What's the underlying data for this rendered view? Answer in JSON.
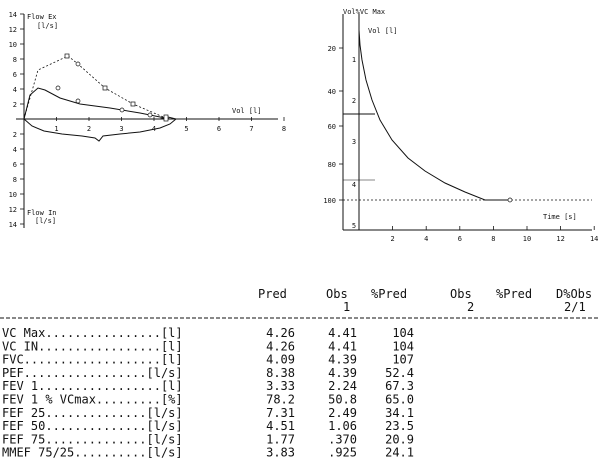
{
  "flow_chart": {
    "y_axis_title_top": "Flow Ex",
    "y_axis_unit_top": "[l/s]",
    "y_axis_title_bottom": "Flow In",
    "y_axis_unit_bottom": "[l/s]",
    "x_axis_title": "Vol [l]",
    "y_ticks_top": [
      "14",
      "12",
      "10",
      "8",
      "6",
      "4",
      "2"
    ],
    "y_ticks_bottom": [
      "2",
      "4",
      "6",
      "8",
      "10",
      "12",
      "14"
    ],
    "x_ticks": [
      "1",
      "2",
      "3",
      "4",
      "5",
      "6",
      "7",
      "8"
    ]
  },
  "volume_time_chart": {
    "y_axis_title": "Vol%VC Max",
    "inner_label": "Vol [l]",
    "x_axis_title": "Time [s]",
    "pct_ticks": [
      "20",
      "40",
      "60",
      "80",
      "100"
    ],
    "vol_ticks": [
      "1",
      "2",
      "3",
      "4",
      "5"
    ],
    "x_ticks": [
      "2",
      "4",
      "6",
      "8",
      "10",
      "12",
      "14"
    ]
  },
  "table": {
    "headers": {
      "pred": "Pred",
      "obs1": "Obs",
      "obs1_sub": "1",
      "pred_pct1": "%Pred",
      "obs2": "Obs",
      "obs2_sub": "2",
      "pred_pct2": "%Pred",
      "dobs": "D%Obs",
      "dobs_sub": "2/1"
    },
    "rows": [
      {
        "label": "VC Max................[l]",
        "pred": "4.26",
        "obs": "4.41",
        "pct": "104"
      },
      {
        "label": "VC IN.................[l]",
        "pred": "4.26",
        "obs": "4.41",
        "pct": "104"
      },
      {
        "label": "FVC...................[l]",
        "pred": "4.09",
        "obs": "4.39",
        "pct": "107"
      },
      {
        "label": "PEF.................[l/s]",
        "pred": "8.38",
        "obs": "4.39",
        "pct": "52.4"
      },
      {
        "label": "FEV 1.................[l]",
        "pred": "3.33",
        "obs": "2.24",
        "pct": "67.3"
      },
      {
        "label": "FEV 1 % VCmax.........[%]",
        "pred": "78.2",
        "obs": "50.8",
        "pct": "65.0"
      },
      {
        "label": "FEF 25..............[l/s]",
        "pred": "7.31",
        "obs": "2.49",
        "pct": "34.1"
      },
      {
        "label": "FEF 50..............[l/s]",
        "pred": "4.51",
        "obs": "1.06",
        "pct": "23.5"
      },
      {
        "label": "FEF 75..............[l/s]",
        "pred": "1.77",
        "obs": ".370",
        "pct": "20.9"
      },
      {
        "label": "MMEF 75/25..........[l/s]",
        "pred": "3.83",
        "obs": ".925",
        "pct": "24.1"
      }
    ]
  }
}
